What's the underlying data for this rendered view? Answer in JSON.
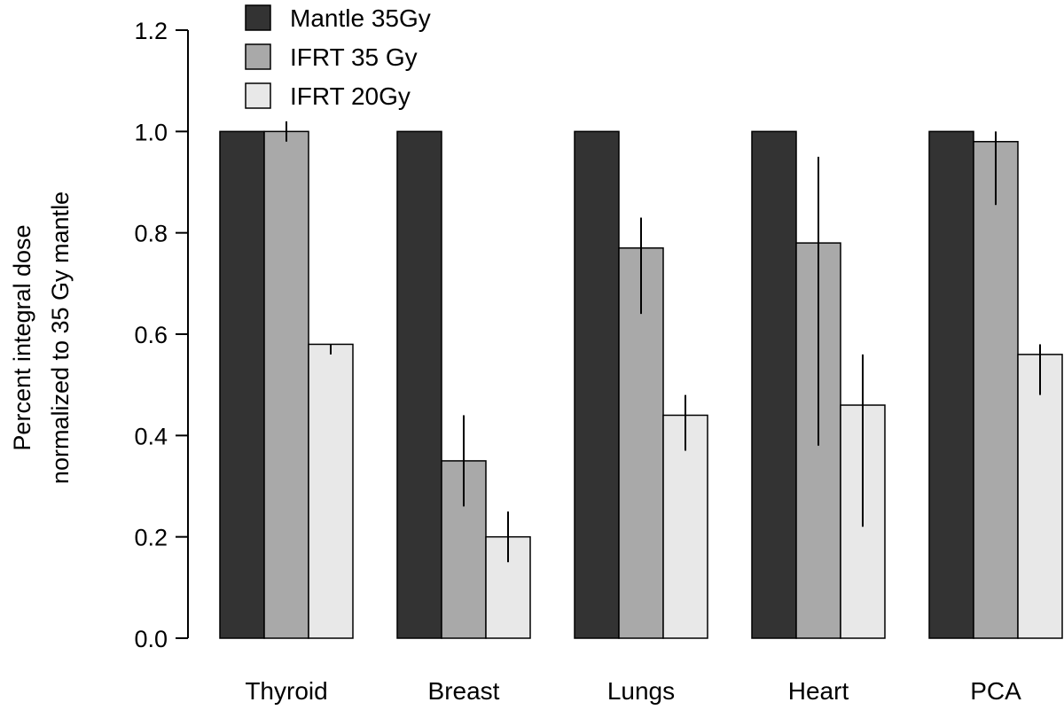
{
  "chart_data": {
    "type": "bar",
    "title": "",
    "xlabel": "",
    "ylabel_lines": [
      "Percent integral dose",
      "normalized to 35 Gy mantle"
    ],
    "ylim": [
      0,
      1.2
    ],
    "y_ticks": [
      "0.0",
      "0.2",
      "0.4",
      "0.6",
      "0.8",
      "1.0",
      "1.2"
    ],
    "categories": [
      "Thyroid",
      "Breast",
      "Lungs",
      "Heart",
      "PCA"
    ],
    "series": [
      {
        "name": "Mantle 35Gy",
        "color": "#333333",
        "values": [
          1.0,
          1.0,
          1.0,
          1.0,
          1.0
        ],
        "error_low": [
          null,
          null,
          null,
          null,
          null
        ],
        "error_high": [
          null,
          null,
          null,
          null,
          null
        ]
      },
      {
        "name": "IFRT 35 Gy",
        "color": "#a9a9a9",
        "values": [
          1.0,
          0.35,
          0.77,
          0.78,
          0.98
        ],
        "error_low": [
          0.98,
          0.26,
          0.64,
          0.38,
          0.855
        ],
        "error_high": [
          1.02,
          0.44,
          0.83,
          0.95,
          1.0
        ]
      },
      {
        "name": "IFRT 20Gy",
        "color": "#e8e8e8",
        "values": [
          0.58,
          0.2,
          0.44,
          0.46,
          0.56
        ],
        "error_low": [
          0.56,
          0.15,
          0.37,
          0.22,
          0.48
        ],
        "error_high": [
          0.58,
          0.25,
          0.48,
          0.56,
          0.58
        ]
      }
    ],
    "legend": {
      "position": "top-left",
      "entries": [
        "Mantle 35Gy",
        "IFRT 35 Gy",
        "IFRT 20Gy"
      ]
    }
  }
}
